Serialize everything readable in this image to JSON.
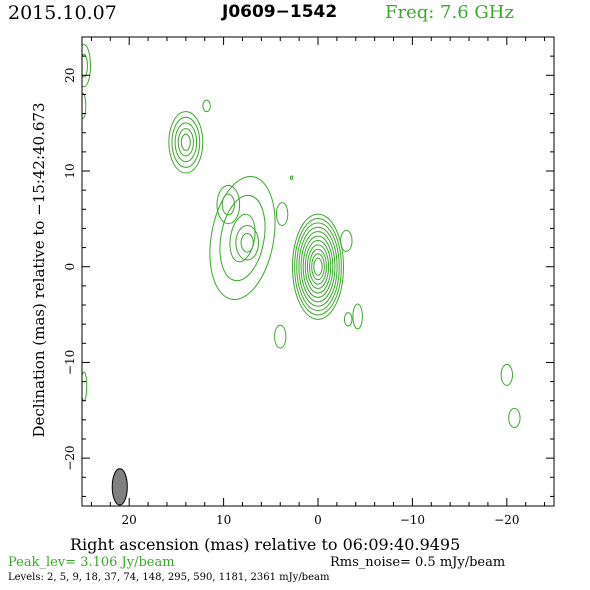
{
  "header": {
    "date": "2015.10.07",
    "source": "J0609−1542",
    "frequency": "Freq: 7.6 GHz"
  },
  "footer": {
    "peak": "Peak_lev=  3.106 Jy/beam",
    "rms": "Rms_noise=  0.5 mJy/beam",
    "levels": "Levels:  2,  5,  9,  18,  37,  74,  148,  295,  590,  1181,  2361 mJy/beam"
  },
  "colors": {
    "contour": "#3aa82a",
    "beam": "#808080",
    "frame": "#000000"
  },
  "chart_data": {
    "type": "contour",
    "xlabel": "Right ascension (mas) relative to 06:09:40.9495",
    "ylabel": "Declination (mas) relative to −15:42:40.673",
    "xlim": [
      25,
      -25
    ],
    "ylim": [
      -25,
      24
    ],
    "xticks": [
      20,
      10,
      0,
      -10,
      -20
    ],
    "xtick_labels": [
      "20",
      "10",
      "0",
      "−10",
      "−20"
    ],
    "yticks": [
      20,
      10,
      0,
      -10,
      -20
    ],
    "ytick_labels": [
      "20",
      "10",
      "0",
      "−10",
      "−20"
    ],
    "levels_mJy": [
      2,
      5,
      9,
      18,
      37,
      74,
      148,
      295,
      590,
      1181,
      2361
    ],
    "peak_Jy_per_beam": 3.106,
    "rms_mJy_per_beam": 0.5,
    "components": [
      {
        "x": 0,
        "y": 0,
        "levels": 11,
        "rx": 2.7,
        "ry": 5.5,
        "rot": 0
      },
      {
        "x": 14,
        "y": 13,
        "levels": 5,
        "rx": 1.8,
        "ry": 3.2,
        "rot": 0
      },
      {
        "x": 8,
        "y": 3,
        "levels": 3,
        "rx": 3.3,
        "ry": 6.5,
        "rot": 10
      },
      {
        "x": 9.5,
        "y": 6.5,
        "levels": 2,
        "rx": 1.2,
        "ry": 2,
        "rot": 0
      },
      {
        "x": 7.5,
        "y": 2.5,
        "levels": 2,
        "rx": 1.2,
        "ry": 1.8,
        "rot": 0
      },
      {
        "x": 3.8,
        "y": 5.5,
        "levels": 1,
        "rx": 0.6,
        "ry": 1.2,
        "rot": 0
      },
      {
        "x": 4,
        "y": -7.3,
        "levels": 1,
        "rx": 0.6,
        "ry": 1.2,
        "rot": 0
      },
      {
        "x": -4.2,
        "y": -5.2,
        "levels": 1,
        "rx": 0.5,
        "ry": 1.3,
        "rot": 0
      },
      {
        "x": -3,
        "y": 2.7,
        "levels": 1,
        "rx": 0.6,
        "ry": 1.1,
        "rot": 0
      },
      {
        "x": -3.2,
        "y": -5.5,
        "levels": 1,
        "rx": 0.4,
        "ry": 0.7,
        "rot": 0
      },
      {
        "x": -20,
        "y": -11.3,
        "levels": 1,
        "rx": 0.6,
        "ry": 1.1,
        "rot": 0
      },
      {
        "x": -20.8,
        "y": -15.8,
        "levels": 1,
        "rx": 0.6,
        "ry": 1.0,
        "rot": 0
      },
      {
        "x": 11.8,
        "y": 16.8,
        "levels": 1,
        "rx": 0.4,
        "ry": 0.6,
        "rot": 0
      },
      {
        "x": 2.8,
        "y": 9.3,
        "levels": 1,
        "rx": 0.12,
        "ry": 0.18,
        "rot": 0
      },
      {
        "x": 24.8,
        "y": 21,
        "levels": 2,
        "rx": 0.7,
        "ry": 2.2,
        "rot": 0
      },
      {
        "x": 24.9,
        "y": 16.8,
        "levels": 1,
        "rx": 0.3,
        "ry": 1.3,
        "rot": 0
      },
      {
        "x": 24.8,
        "y": -12.5,
        "levels": 1,
        "rx": 0.3,
        "ry": 1.5,
        "rot": 0
      }
    ],
    "beam": {
      "x": 21,
      "y": -23,
      "major_mas": 3.8,
      "minor_mas": 1.6,
      "pa_deg": 0
    }
  }
}
